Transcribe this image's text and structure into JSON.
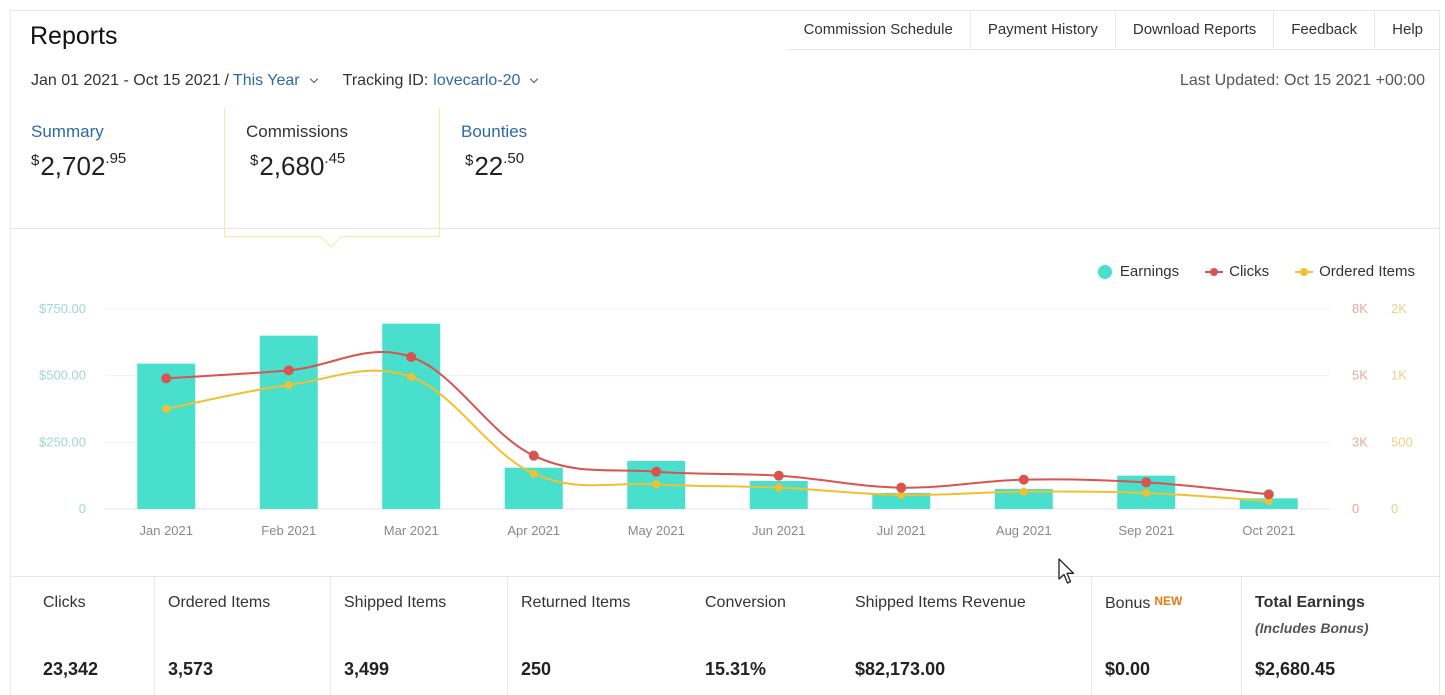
{
  "header": {
    "title": "Reports",
    "nav": [
      "Commission Schedule",
      "Payment History",
      "Download Reports",
      "Feedback",
      "Help"
    ]
  },
  "filters": {
    "date_range": "Jan 01 2021 - Oct 15 2021",
    "separator": "/",
    "period": "This Year",
    "tracking_label": "Tracking ID:",
    "tracking_id": "lovecarlo-20"
  },
  "last_updated": "Last Updated: Oct 15 2021 +00:00",
  "summary_tabs": [
    {
      "label": "Summary",
      "currency": "$",
      "whole": "2,702",
      "cents": ".95",
      "active": false
    },
    {
      "label": "Commissions",
      "currency": "$",
      "whole": "2,680",
      "cents": ".45",
      "active": true
    },
    {
      "label": "Bounties",
      "currency": "$",
      "whole": "22",
      "cents": ".50",
      "active": false
    }
  ],
  "legend": [
    {
      "label": "Earnings",
      "color": "#48e0cc"
    },
    {
      "label": "Clicks",
      "color": "#d9534f"
    },
    {
      "label": "Ordered Items",
      "color": "#f0c030"
    }
  ],
  "chart_data": {
    "type": "bar",
    "categories": [
      "Jan 2021",
      "Feb 2021",
      "Mar 2021",
      "Apr 2021",
      "May 2021",
      "Jun 2021",
      "Jul 2021",
      "Aug 2021",
      "Sep 2021",
      "Oct 2021"
    ],
    "series": [
      {
        "name": "Earnings",
        "type": "bar",
        "axis": "left",
        "color": "#48e0cc",
        "values": [
          545,
          650,
          695,
          155,
          180,
          105,
          60,
          75,
          125,
          40
        ]
      },
      {
        "name": "Clicks",
        "type": "line",
        "axis": "right-1",
        "color": "#d9534f",
        "values": [
          4900,
          5200,
          5700,
          2000,
          1400,
          1250,
          800,
          1100,
          1000,
          550
        ]
      },
      {
        "name": "Ordered Items",
        "type": "line",
        "axis": "right-2",
        "color": "#f0c030",
        "values": [
          750,
          930,
          990,
          265,
          185,
          160,
          105,
          130,
          120,
          60
        ]
      }
    ],
    "y_left": {
      "ticks": [
        "$750.00",
        "$500.00",
        "$250.00",
        "0"
      ],
      "max": 750
    },
    "y_right_1": {
      "ticks": [
        "8K",
        "5K",
        "3K",
        "0"
      ],
      "max": 7500
    },
    "y_right_2": {
      "ticks": [
        "2K",
        "1K",
        "500",
        "0"
      ],
      "max": 1500
    },
    "grid": true,
    "legend_position": "top-right"
  },
  "stats": [
    {
      "label": "Clicks",
      "value": "23,342"
    },
    {
      "label": "Ordered Items",
      "value": "3,573"
    },
    {
      "label": "Shipped Items",
      "value": "3,499"
    },
    {
      "label": "Returned Items",
      "value": "250"
    },
    {
      "label": "Conversion",
      "value": "15.31%"
    },
    {
      "label": "Shipped Items Revenue",
      "value": "$82,173.00"
    },
    {
      "label": "Bonus",
      "badge": "NEW",
      "value": "$0.00"
    },
    {
      "label": "Total Earnings",
      "sub": "(Includes Bonus)",
      "value": "$2,680.45"
    }
  ]
}
